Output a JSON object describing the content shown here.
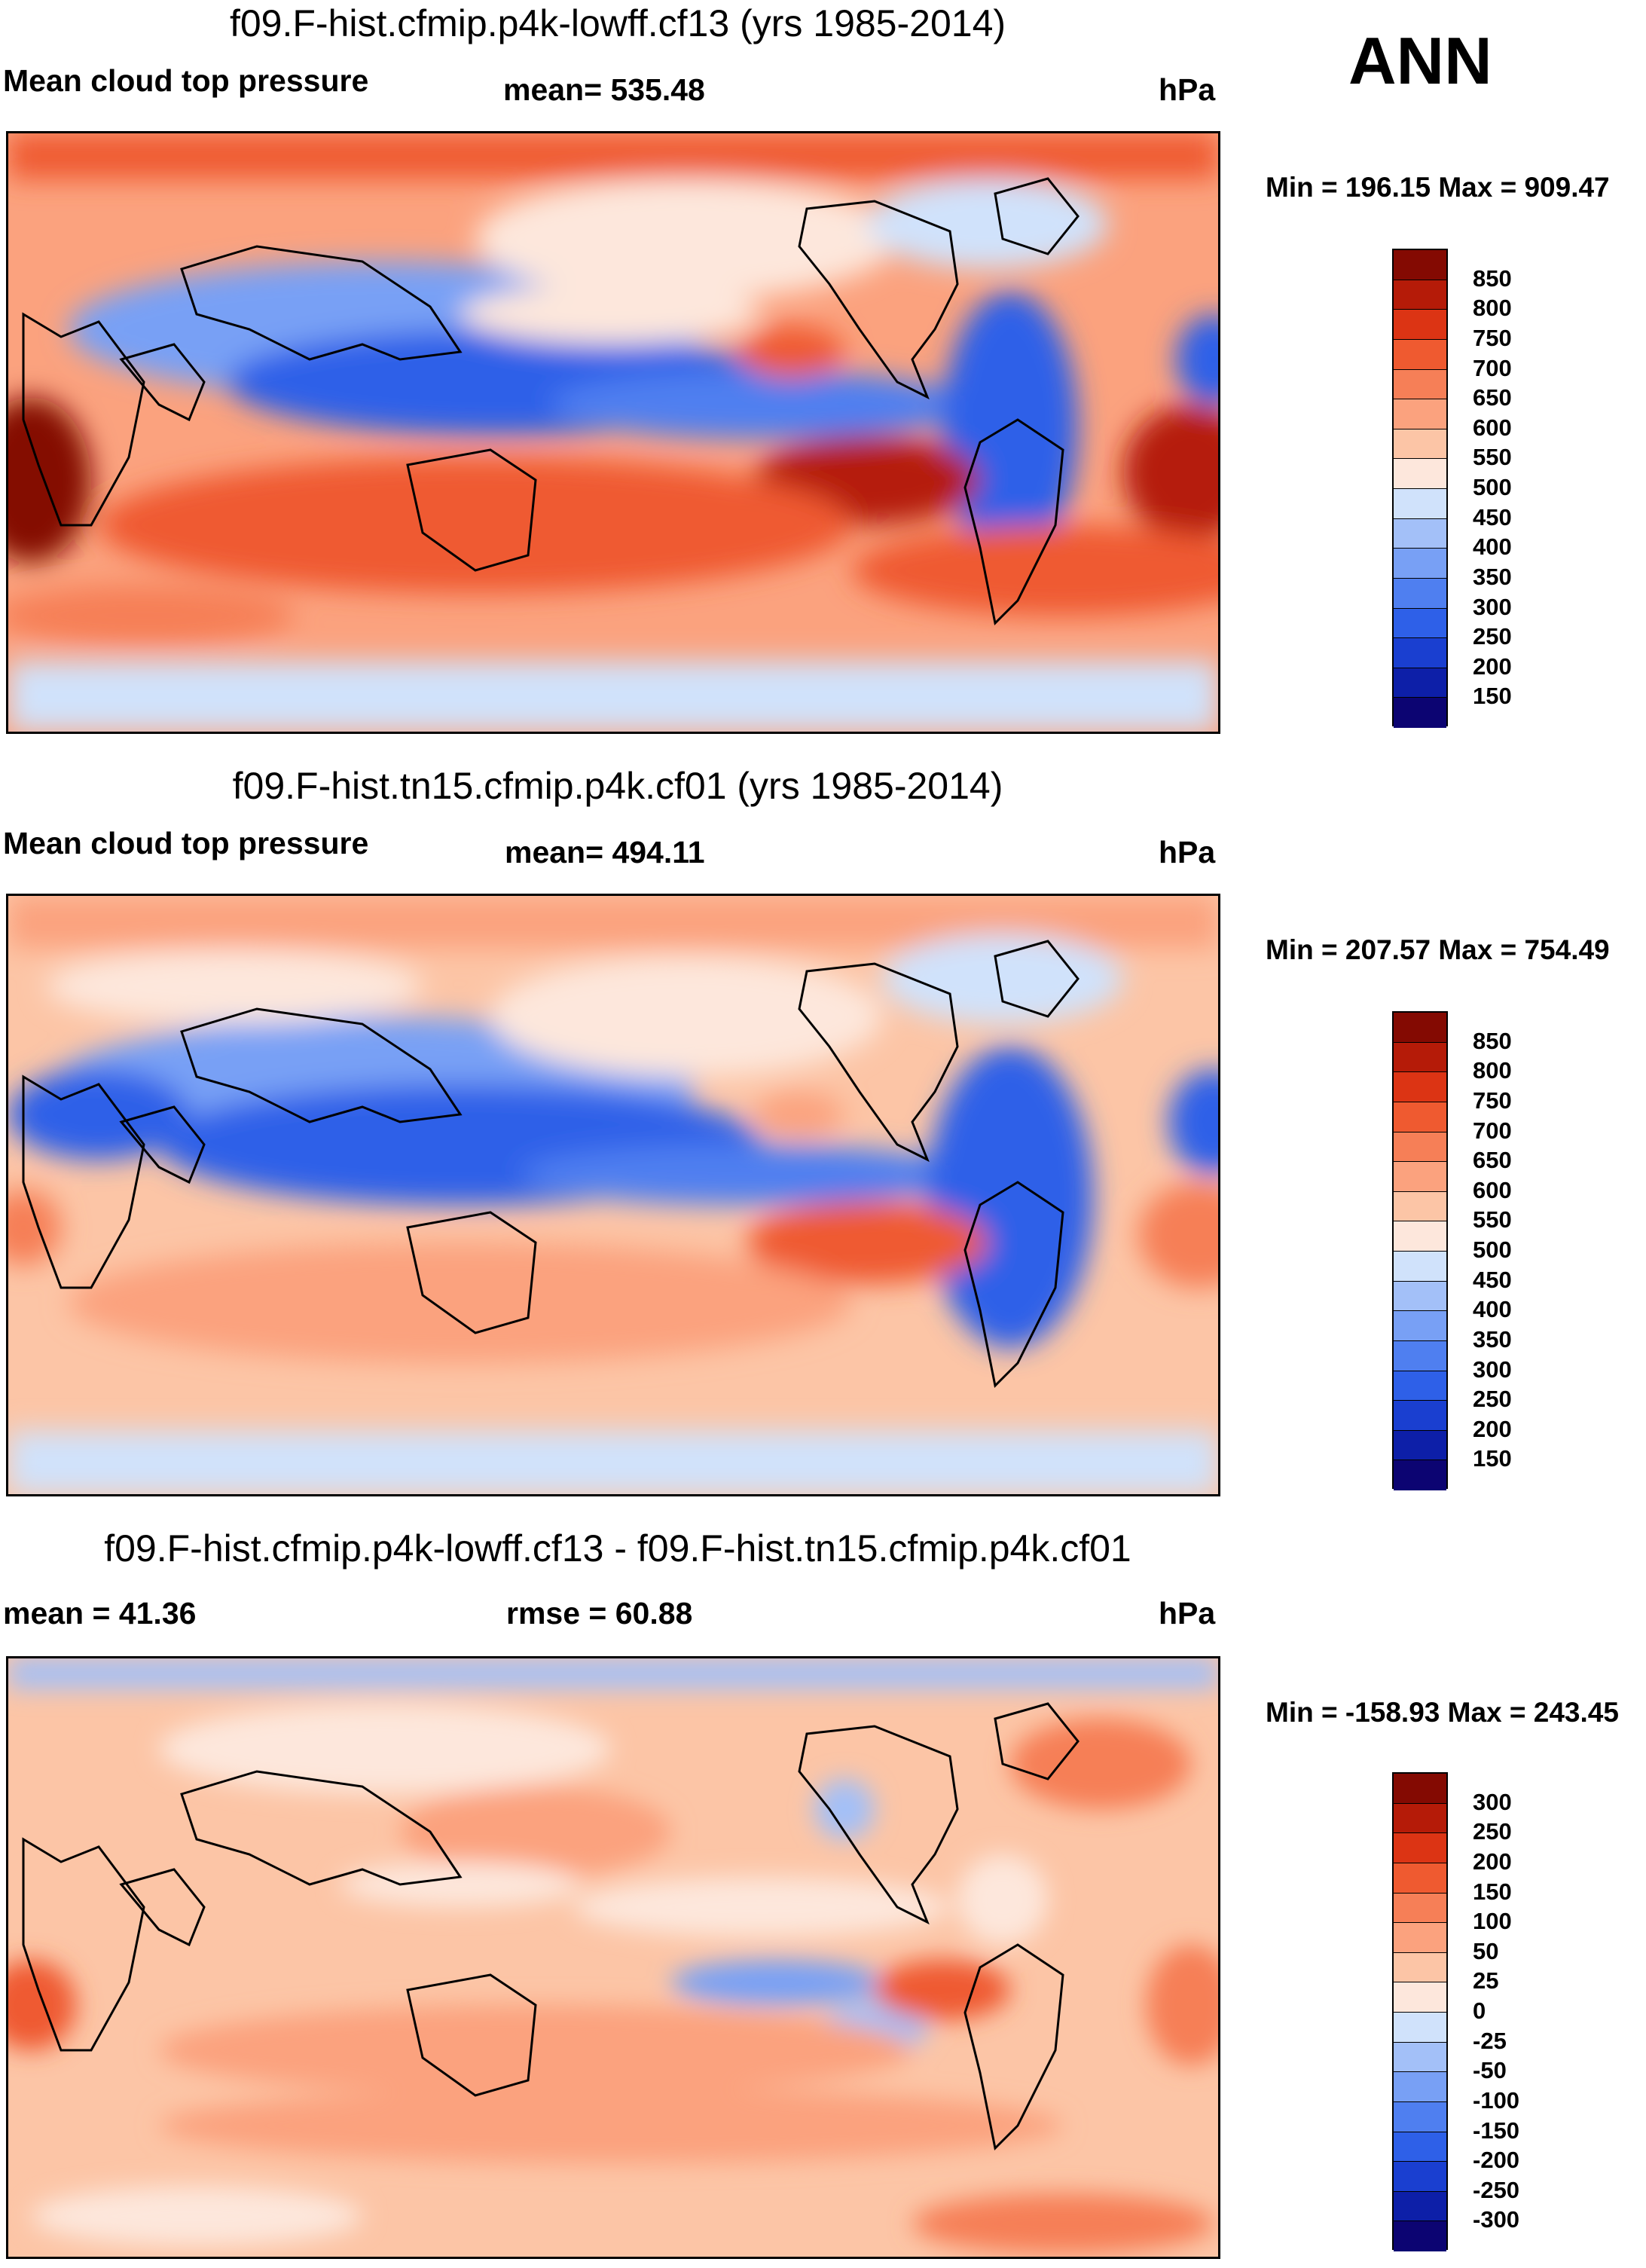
{
  "season": "ANN",
  "units": "hPa",
  "palette_abs": [
    "#0c0472",
    "#0d1fa8",
    "#1a3fd0",
    "#2e60e8",
    "#4f7ff0",
    "#78a0f5",
    "#a3c0f8",
    "#d0e2fb",
    "#fde7dc",
    "#fcc5a6",
    "#fba27e",
    "#f67f57",
    "#ef5a30",
    "#dc3414",
    "#b51b08",
    "#840a02"
  ],
  "palette_diff": [
    "#0c0472",
    "#0d1fa8",
    "#1a3fd0",
    "#2e60e8",
    "#4f7ff0",
    "#78a0f5",
    "#a3c0f8",
    "#d0e2fb",
    "#fde7dc",
    "#fcc5a6",
    "#fba27e",
    "#f67f57",
    "#ef5a30",
    "#dc3414",
    "#b51b08",
    "#840a02"
  ],
  "chart_data": [
    {
      "type": "heatmap",
      "title": "f09.F-hist.cfmip.p4k-lowff.cf13 (yrs 1985-2014)",
      "variable": "Mean cloud top pressure",
      "mean_label": "mean= 535.48",
      "units": "hPa",
      "minmax_label": "Min = 196.15 Max = 909.47",
      "min": 196.15,
      "max": 909.47,
      "mean": 535.48,
      "colorbar_levels": [
        "850",
        "800",
        "750",
        "700",
        "650",
        "600",
        "550",
        "500",
        "450",
        "400",
        "350",
        "300",
        "250",
        "200",
        "150"
      ]
    },
    {
      "type": "heatmap",
      "title": "f09.F-hist.tn15.cfmip.p4k.cf01 (yrs 1985-2014)",
      "variable": "Mean cloud top pressure",
      "mean_label": "mean= 494.11",
      "units": "hPa",
      "minmax_label": "Min = 207.57 Max = 754.49",
      "min": 207.57,
      "max": 754.49,
      "mean": 494.11,
      "colorbar_levels": [
        "850",
        "800",
        "750",
        "700",
        "650",
        "600",
        "550",
        "500",
        "450",
        "400",
        "350",
        "300",
        "250",
        "200",
        "150"
      ]
    },
    {
      "type": "heatmap",
      "title": "f09.F-hist.cfmip.p4k-lowff.cf13 - f09.F-hist.tn15.cfmip.p4k.cf01",
      "mean_label": "mean =  41.36",
      "rmse_label": "rmse =  60.88",
      "units": "hPa",
      "minmax_label": "Min = -158.93 Max = 243.45",
      "min": -158.93,
      "max": 243.45,
      "mean": 41.36,
      "rmse": 60.88,
      "colorbar_levels": [
        "300",
        "250",
        "200",
        "150",
        "100",
        "50",
        "25",
        "0",
        "-25",
        "-50",
        "-100",
        "-150",
        "-200",
        "-250",
        "-300"
      ]
    }
  ]
}
